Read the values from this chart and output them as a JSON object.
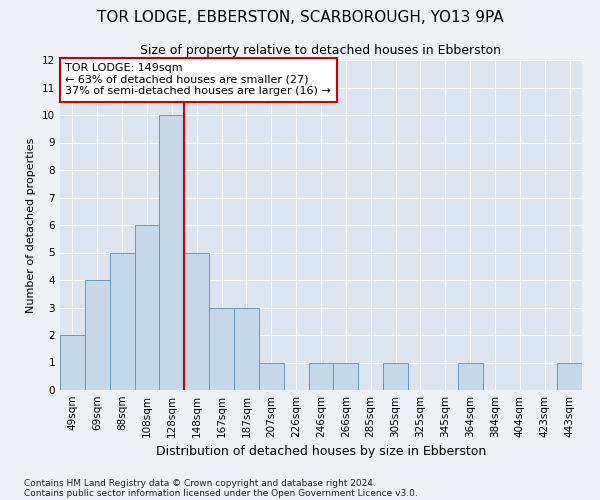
{
  "title": "TOR LODGE, EBBERSTON, SCARBOROUGH, YO13 9PA",
  "subtitle": "Size of property relative to detached houses in Ebberston",
  "xlabel": "Distribution of detached houses by size in Ebberston",
  "ylabel": "Number of detached properties",
  "categories": [
    "49sqm",
    "69sqm",
    "88sqm",
    "108sqm",
    "128sqm",
    "148sqm",
    "167sqm",
    "187sqm",
    "207sqm",
    "226sqm",
    "246sqm",
    "266sqm",
    "285sqm",
    "305sqm",
    "325sqm",
    "345sqm",
    "364sqm",
    "384sqm",
    "404sqm",
    "423sqm",
    "443sqm"
  ],
  "values": [
    2,
    4,
    5,
    6,
    10,
    5,
    3,
    3,
    1,
    0,
    1,
    1,
    0,
    1,
    0,
    0,
    1,
    0,
    0,
    0,
    1
  ],
  "bar_color": "#c5d8ea",
  "bar_edge_color": "#6699bb",
  "vline_x": 4.5,
  "vline_color": "#cc0000",
  "ylim": [
    0,
    12
  ],
  "yticks": [
    0,
    1,
    2,
    3,
    4,
    5,
    6,
    7,
    8,
    9,
    10,
    11,
    12
  ],
  "annotation_box_text": "TOR LODGE: 149sqm\n← 63% of detached houses are smaller (27)\n37% of semi-detached houses are larger (16) →",
  "footnote1": "Contains HM Land Registry data © Crown copyright and database right 2024.",
  "footnote2": "Contains public sector information licensed under the Open Government Licence v3.0.",
  "background_color": "#eef2f7",
  "plot_bg_color": "#dde6f0",
  "title_fontsize": 11,
  "subtitle_fontsize": 9,
  "tick_fontsize": 7.5,
  "ylabel_fontsize": 8,
  "xlabel_fontsize": 9
}
